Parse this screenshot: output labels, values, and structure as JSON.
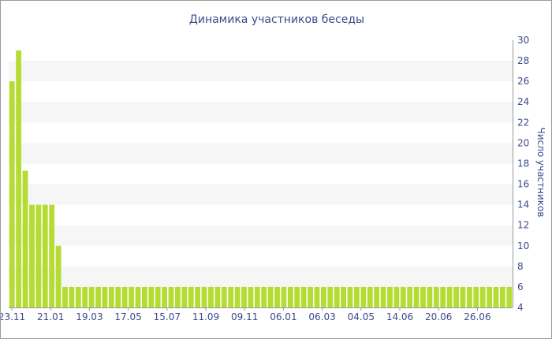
{
  "chart_data": {
    "type": "bar",
    "title": "Динамика участников беседы",
    "xlabel": "",
    "ylabel": "Число участников",
    "ylim": [
      4,
      30
    ],
    "y_ticks": [
      4,
      6,
      8,
      10,
      12,
      14,
      16,
      18,
      20,
      22,
      24,
      26,
      28,
      30
    ],
    "x_tick_labels": [
      "23.11",
      "21.01",
      "19.03",
      "17.05",
      "15.07",
      "11.09",
      "09.11",
      "06.01",
      "06.03",
      "04.05",
      "14.06",
      "20.06",
      "26.06"
    ],
    "values": [
      26,
      29,
      17.3,
      14,
      14,
      14,
      14,
      10,
      6,
      6,
      6,
      6,
      6,
      6,
      6,
      6,
      6,
      6,
      6,
      6,
      6,
      6,
      6,
      6,
      6,
      6,
      6,
      6,
      6,
      6,
      6,
      6,
      6,
      6,
      6,
      6,
      6,
      6,
      6,
      6,
      6,
      6,
      6,
      6,
      6,
      6,
      6,
      6,
      6,
      6,
      6,
      6,
      6,
      6,
      6,
      6,
      6,
      6,
      6,
      6,
      6,
      6,
      6,
      6,
      6,
      6,
      6,
      6,
      6,
      6,
      6,
      6,
      6,
      6,
      6,
      6
    ],
    "bar_color": "#b4dc32",
    "band_color": "#f6f6f6",
    "grid": false,
    "legend": "none",
    "y_axis_side": "right"
  }
}
